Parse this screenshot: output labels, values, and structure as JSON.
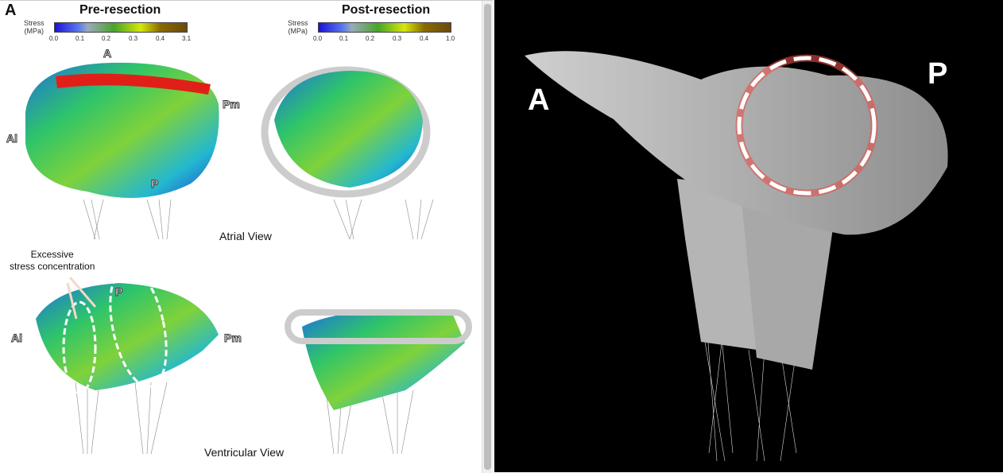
{
  "panel_letter": "A",
  "pre": {
    "title": "Pre-resection",
    "stress_label": "Stress\n(MPa)",
    "ticks": [
      "0.0",
      "0.1",
      "0.2",
      "0.3",
      "0.4",
      "3.1"
    ]
  },
  "post": {
    "title": "Post-resection",
    "stress_label": "Stress\n(MPa)",
    "ticks": [
      "0.0",
      "0.1",
      "0.2",
      "0.3",
      "0.4",
      "1.0"
    ]
  },
  "labels": {
    "A": "A",
    "Al": "Al",
    "Pm": "Pm",
    "P": "P"
  },
  "atrial_view": "Atrial View",
  "ventricular_view": "Ventricular View",
  "annotation": "Excessive\nstress concentration",
  "right": {
    "label_a": "A",
    "label_p": "P"
  },
  "colors": {
    "highlight": "#e03030",
    "low_stress": "#1a12d8",
    "high_stress": "#6b4a10"
  }
}
